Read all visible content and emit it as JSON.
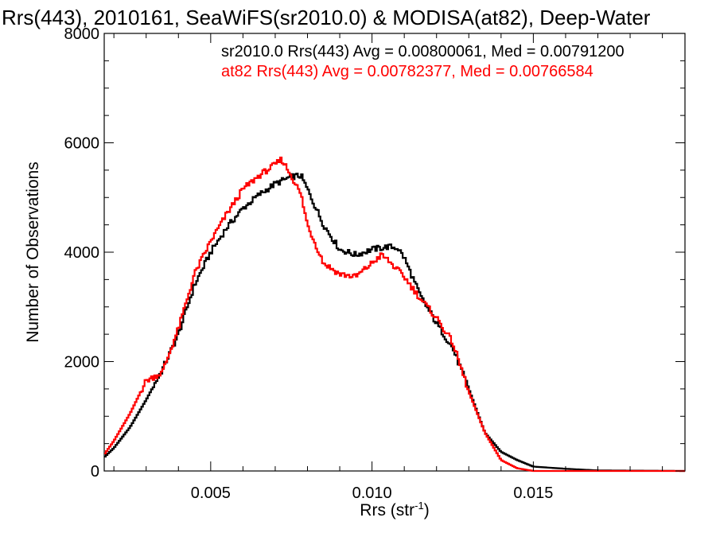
{
  "chart_data": {
    "type": "line",
    "title": "Rrs(443), 2010161, SeaWiFS(sr2010.0) & MODISA(at82), Deep-Water",
    "xlabel": "Rrs (str",
    "xlabel_sup": "-1",
    "xlabel_suffix": ")",
    "ylabel": "Number of Observations",
    "xlim": [
      0.0017,
      0.0197
    ],
    "ylim": [
      0,
      8000
    ],
    "xticks": [
      {
        "value": 0.005,
        "label": "0.005"
      },
      {
        "value": 0.01,
        "label": "0.010"
      },
      {
        "value": 0.015,
        "label": "0.015"
      }
    ],
    "yticks": [
      {
        "value": 0,
        "label": "0"
      },
      {
        "value": 2000,
        "label": "2000"
      },
      {
        "value": 4000,
        "label": "4000"
      },
      {
        "value": 6000,
        "label": "6000"
      },
      {
        "value": 8000,
        "label": "8000"
      }
    ],
    "grid": false,
    "step_style": "histogram",
    "series": [
      {
        "name": "sr2010.0 Rrs(443) Avg = 0.00800061, Med = 0.00791200",
        "color": "#000000",
        "x": [
          0.0017,
          0.002,
          0.0025,
          0.003,
          0.0035,
          0.004,
          0.0045,
          0.005,
          0.0055,
          0.006,
          0.0065,
          0.007,
          0.0075,
          0.0078,
          0.008,
          0.0085,
          0.009,
          0.0095,
          0.01,
          0.0105,
          0.0108,
          0.011,
          0.0115,
          0.012,
          0.0125,
          0.013,
          0.0135,
          0.014,
          0.0145,
          0.015,
          0.016,
          0.017,
          0.0197
        ],
        "y": [
          250,
          420,
          800,
          1300,
          1850,
          2500,
          3400,
          4000,
          4450,
          4800,
          5050,
          5250,
          5380,
          5400,
          5150,
          4500,
          4050,
          3950,
          4050,
          4100,
          4080,
          3900,
          3200,
          2700,
          2250,
          1500,
          700,
          350,
          200,
          80,
          40,
          10,
          0
        ]
      },
      {
        "name": "at82 Rrs(443) Avg = 0.00782377, Med = 0.00766584",
        "color": "#ff0000",
        "x": [
          0.0017,
          0.002,
          0.0025,
          0.003,
          0.0035,
          0.004,
          0.0045,
          0.005,
          0.0055,
          0.006,
          0.0065,
          0.007,
          0.0072,
          0.0075,
          0.0078,
          0.008,
          0.0085,
          0.009,
          0.0095,
          0.01,
          0.0103,
          0.0105,
          0.011,
          0.0115,
          0.012,
          0.0125,
          0.013,
          0.0135,
          0.014,
          0.0145,
          0.015,
          0.0197
        ],
        "y": [
          300,
          550,
          1050,
          1650,
          1800,
          2600,
          3600,
          4200,
          4700,
          5150,
          5400,
          5600,
          5700,
          5400,
          5050,
          4500,
          3800,
          3600,
          3550,
          3800,
          3950,
          3850,
          3550,
          3150,
          2800,
          2350,
          1450,
          700,
          200,
          50,
          0,
          0
        ]
      }
    ],
    "legend": "top"
  }
}
